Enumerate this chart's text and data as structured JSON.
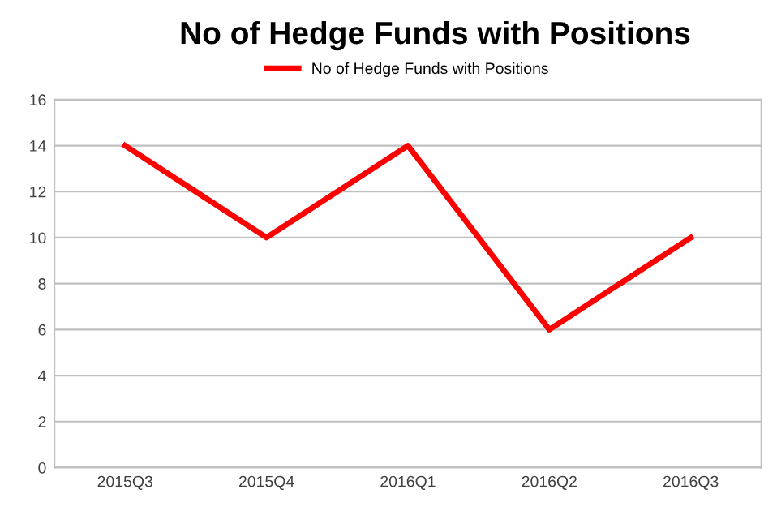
{
  "chart_data": {
    "type": "line",
    "title": "No of Hedge Funds with Positions",
    "categories": [
      "2015Q3",
      "2015Q4",
      "2016Q1",
      "2016Q2",
      "2016Q3"
    ],
    "series": [
      {
        "name": "No of Hedge Funds with Positions",
        "color": "#ff0000",
        "values": [
          14,
          10,
          14,
          6,
          10
        ]
      }
    ],
    "ylim": [
      0,
      16
    ],
    "yticks": [
      0,
      2,
      4,
      6,
      8,
      10,
      12,
      14,
      16
    ],
    "grid": "y",
    "legend": "top",
    "marker": "none",
    "line_style": "solid"
  }
}
